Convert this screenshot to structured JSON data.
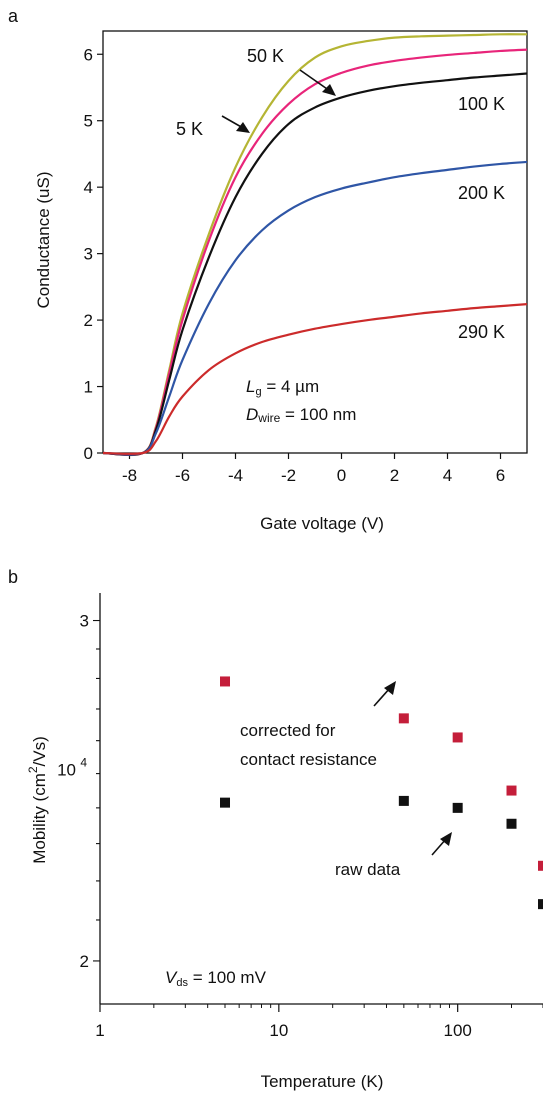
{
  "panels": [
    {
      "letter": "a"
    },
    {
      "letter": "b"
    }
  ],
  "chart_data": [
    {
      "type": "line",
      "xlabel": "Gate voltage (V)",
      "ylabel": "Conductance (uS)",
      "xlim": [
        -9,
        7
      ],
      "ylim": [
        0,
        6.35
      ],
      "xticks": [
        -8,
        -6,
        -4,
        -2,
        0,
        2,
        4,
        6
      ],
      "yticks": [
        0,
        1,
        2,
        3,
        4,
        5,
        6
      ],
      "grid": false,
      "series": [
        {
          "name": "50 K",
          "color": "#b5b534",
          "x": [
            -9,
            -7.5,
            -7,
            -6.5,
            -6,
            -5,
            -4,
            -3,
            -2,
            -1,
            0,
            1,
            2,
            3,
            4,
            5,
            6,
            7
          ],
          "y": [
            0,
            0,
            0.4,
            1.25,
            2.1,
            3.3,
            4.3,
            5.05,
            5.6,
            5.95,
            6.12,
            6.2,
            6.25,
            6.27,
            6.28,
            6.29,
            6.3,
            6.3
          ]
        },
        {
          "name": "5 K",
          "color": "#e8257a",
          "x": [
            -9,
            -7.5,
            -7,
            -6.5,
            -6,
            -5,
            -4,
            -3,
            -2,
            -1,
            0,
            1,
            2,
            3,
            4,
            5,
            6,
            7
          ],
          "y": [
            0,
            0,
            0.38,
            1.2,
            2.0,
            3.2,
            4.15,
            4.8,
            5.25,
            5.55,
            5.72,
            5.83,
            5.9,
            5.95,
            5.99,
            6.02,
            6.05,
            6.07
          ]
        },
        {
          "name": "100 K",
          "color": "#111111",
          "x": [
            -9,
            -7.5,
            -7,
            -6.5,
            -6,
            -5,
            -4,
            -3,
            -2,
            -1,
            0,
            1,
            2,
            3,
            4,
            5,
            6,
            7
          ],
          "y": [
            0,
            0,
            0.35,
            1.1,
            1.85,
            2.95,
            3.85,
            4.5,
            4.95,
            5.2,
            5.35,
            5.45,
            5.52,
            5.57,
            5.61,
            5.65,
            5.68,
            5.71
          ]
        },
        {
          "name": "200 K",
          "color": "#2f56a6",
          "x": [
            -9,
            -7.5,
            -7,
            -6.5,
            -6,
            -5,
            -4,
            -3,
            -2,
            -1,
            0,
            1,
            2,
            3,
            4,
            5,
            6,
            7
          ],
          "y": [
            0,
            0,
            0.3,
            0.85,
            1.4,
            2.25,
            2.9,
            3.35,
            3.65,
            3.85,
            3.98,
            4.07,
            4.15,
            4.21,
            4.26,
            4.31,
            4.35,
            4.38
          ]
        },
        {
          "name": "290 K",
          "color": "#cc2b2b",
          "x": [
            -9,
            -7.5,
            -7,
            -6.5,
            -6,
            -5,
            -4,
            -3,
            -2,
            -1,
            0,
            1,
            2,
            3,
            4,
            5,
            6,
            7
          ],
          "y": [
            0,
            0,
            0.18,
            0.55,
            0.85,
            1.25,
            1.5,
            1.67,
            1.78,
            1.87,
            1.94,
            2.0,
            2.05,
            2.1,
            2.14,
            2.18,
            2.21,
            2.24
          ]
        }
      ],
      "annotations": {
        "lg_symbol": "L",
        "lg_sub": "g",
        "lg_rest": " = 4 µm",
        "dwire_symbol": "D",
        "dwire_sub": "wire",
        "dwire_rest": " = 100 nm"
      }
    },
    {
      "type": "scatter",
      "xlabel": "Temperature (K)",
      "ylabel_prefix": "Mobility (cm",
      "ylabel_sup": "2",
      "ylabel_suffix": "/Vs)",
      "x_scale": "log",
      "y_scale": "log",
      "xlim": [
        1,
        300
      ],
      "ylim": [
        19000,
        31000
      ],
      "xticks": [
        {
          "value": 1,
          "label": "1"
        },
        {
          "value": 10,
          "label": "10"
        },
        {
          "value": 100,
          "label": "100"
        }
      ],
      "yticks": [
        {
          "value": 20000,
          "label": "2"
        },
        {
          "value": 21000,
          "label": ""
        },
        {
          "value": 22000,
          "label": ""
        },
        {
          "value": 23000,
          "label": ""
        },
        {
          "value": 24000,
          "label": ""
        },
        {
          "value": 25000,
          "label": ""
        },
        {
          "value": 26000,
          "label": ""
        },
        {
          "value": 27000,
          "label": ""
        },
        {
          "value": 28000,
          "label": ""
        },
        {
          "value": 29000,
          "label": ""
        },
        {
          "value": 30000,
          "label": "3"
        }
      ],
      "yticks_top_label_sup": "4",
      "ytick_10_label": "10",
      "grid": false,
      "series": [
        {
          "color": "#c41e3a",
          "x": [
            5,
            50,
            100,
            200,
            300
          ],
          "y": [
            27900,
            26700,
            26100,
            24500,
            22400
          ]
        },
        {
          "color": "#111111",
          "x": [
            5,
            50,
            100,
            200,
            300
          ],
          "y": [
            24150,
            24200,
            24000,
            23550,
            21400
          ]
        }
      ],
      "annotations": {
        "corrected_line1": "corrected for",
        "corrected_line2": "contact resistance",
        "raw": "raw data",
        "vds_symbol": "V",
        "vds_sub": "ds",
        "vds_rest": " = 100 mV"
      }
    }
  ]
}
